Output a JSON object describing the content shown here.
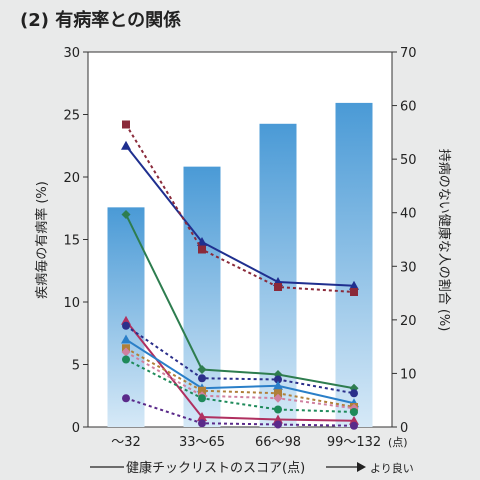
{
  "chart_data": {
    "type": "bar",
    "title": "(2) 有病率との関係",
    "categories": [
      "〜32",
      "33〜65",
      "66〜98",
      "99〜132"
    ],
    "x_unit_label": "(点)",
    "xlabel": "健康チックリストのスコア(点)",
    "x_direction_label": "より良い",
    "ylabel_left": "疾病毎の有病率 (%)",
    "ylabel_right": "持病のない健康な人の割合 (%)",
    "ylim_left": [
      0,
      30
    ],
    "ylim_right": [
      0,
      70
    ],
    "yticks_left": [
      0,
      5,
      10,
      15,
      20,
      25,
      30
    ],
    "yticks_right": [
      0,
      10,
      20,
      30,
      40,
      50,
      60,
      70
    ],
    "bar_axis": "right",
    "bars": [
      41,
      48.6,
      56.6,
      60.5
    ],
    "bar_color": "#4a9ad6",
    "grid": false,
    "series": [
      {
        "color": "#1f2f8f",
        "dash": false,
        "marker": "triangle",
        "values": [
          22.5,
          14.8,
          11.6,
          11.3
        ]
      },
      {
        "color": "#8a2a3a",
        "dash": true,
        "marker": "square",
        "values": [
          24.2,
          14.2,
          11.2,
          10.8
        ]
      },
      {
        "color": "#2e7d4f",
        "dash": false,
        "marker": "diamond",
        "values": [
          17.0,
          4.6,
          4.2,
          3.1
        ]
      },
      {
        "color": "#b03060",
        "dash": false,
        "marker": "triangle",
        "values": [
          8.5,
          0.8,
          0.6,
          0.5
        ]
      },
      {
        "color": "#2b2f8a",
        "dash": true,
        "marker": "circle",
        "values": [
          8.1,
          3.9,
          3.8,
          2.7
        ]
      },
      {
        "color": "#2a7fc8",
        "dash": false,
        "marker": "triangle",
        "values": [
          7.0,
          3.1,
          3.3,
          1.9
        ]
      },
      {
        "color": "#b0803a",
        "dash": true,
        "marker": "square",
        "values": [
          6.3,
          2.9,
          2.7,
          1.6
        ]
      },
      {
        "color": "#d080a0",
        "dash": true,
        "marker": "diamond",
        "values": [
          6.0,
          2.5,
          2.3,
          1.5
        ]
      },
      {
        "color": "#1e8a5a",
        "dash": true,
        "marker": "circle",
        "values": [
          5.4,
          2.3,
          1.4,
          1.2
        ]
      },
      {
        "color": "#5a2a8a",
        "dash": true,
        "marker": "circle",
        "values": [
          2.3,
          0.3,
          0.2,
          0.1
        ]
      }
    ]
  }
}
